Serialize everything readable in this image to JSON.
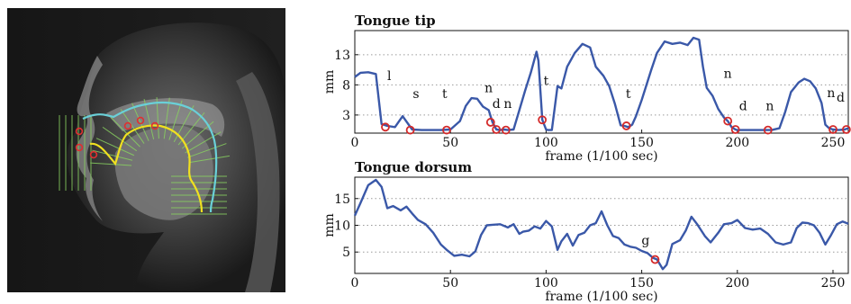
{
  "colors": {
    "line": "#3a58a8",
    "marker": "#d42a2a",
    "grid": "#9a9a9a",
    "mri_trace_outer": "#6ad0d8",
    "mri_trace_inner": "#f0e020",
    "mri_gridlines": "#88d060"
  },
  "image": {
    "kind": "mri-midsagittal-vocal-tract"
  },
  "chart_data": [
    {
      "type": "line",
      "title": "Tongue tip",
      "xlabel": "frame (1/100 sec)",
      "ylabel": "mm",
      "xlim": [
        0,
        258
      ],
      "ylim": [
        0,
        17
      ],
      "xticks": [
        0,
        50,
        100,
        150,
        200,
        250
      ],
      "yticks": [
        3,
        8,
        13
      ],
      "grid": "y-dotted",
      "series": [
        {
          "x": [
            0,
            3,
            7,
            11,
            14,
            17,
            21,
            25,
            30,
            35,
            40,
            45,
            50,
            55,
            58,
            61,
            64,
            67,
            70,
            72,
            74,
            76,
            78,
            80,
            83,
            86,
            89,
            92,
            95,
            96,
            98,
            100,
            101,
            103,
            106,
            108,
            111,
            115,
            119,
            123,
            126,
            130,
            133,
            136,
            139,
            141,
            143,
            145,
            147,
            150,
            155,
            158,
            162,
            166,
            170,
            174,
            177,
            180,
            182,
            184,
            187,
            190,
            193,
            195,
            197,
            199,
            200,
            205,
            210,
            215,
            218,
            222,
            225,
            228,
            232,
            235,
            238,
            241,
            244,
            246,
            248,
            250,
            253,
            256,
            258
          ],
          "y": [
            9.3,
            10,
            10.1,
            9.8,
            1.5,
            1.2,
            1.0,
            2.8,
            0.6,
            0.5,
            0.5,
            0.5,
            0.6,
            2.0,
            4.5,
            5.8,
            5.7,
            4.4,
            3.8,
            1.8,
            0.6,
            0.5,
            0.6,
            0.5,
            0.6,
            3.8,
            7.0,
            10.0,
            13.5,
            12.0,
            2.2,
            0.6,
            0.5,
            0.5,
            7.8,
            7.4,
            11.0,
            13.3,
            14.8,
            14.2,
            11.0,
            9.5,
            7.8,
            4.8,
            1.3,
            1.2,
            1.0,
            1.4,
            2.8,
            5.5,
            10.5,
            13.3,
            15.2,
            14.8,
            15.0,
            14.6,
            15.8,
            15.5,
            11.0,
            7.5,
            6.2,
            4.0,
            2.6,
            2.0,
            1.0,
            0.6,
            0.5,
            0.5,
            0.5,
            0.5,
            0.5,
            0.8,
            3.5,
            6.8,
            8.4,
            9.0,
            8.6,
            7.4,
            5.0,
            1.4,
            0.8,
            0.6,
            0.5,
            0.6,
            0.8
          ]
        }
      ],
      "markers": [
        {
          "x": 16,
          "y": 1.0
        },
        {
          "x": 29,
          "y": 0.5
        },
        {
          "x": 48,
          "y": 0.5
        },
        {
          "x": 71,
          "y": 1.8
        },
        {
          "x": 74,
          "y": 0.6
        },
        {
          "x": 79,
          "y": 0.5
        },
        {
          "x": 98,
          "y": 2.2
        },
        {
          "x": 142,
          "y": 1.2
        },
        {
          "x": 195,
          "y": 2.0
        },
        {
          "x": 199,
          "y": 0.6
        },
        {
          "x": 216,
          "y": 0.5
        },
        {
          "x": 250,
          "y": 0.6
        },
        {
          "x": 257,
          "y": 0.6
        }
      ],
      "annotations": [
        {
          "text": "l",
          "x": 18,
          "y": 8.8
        },
        {
          "text": "s",
          "x": 32,
          "y": 5.8
        },
        {
          "text": "t",
          "x": 47,
          "y": 5.8
        },
        {
          "text": "n",
          "x": 70,
          "y": 6.8
        },
        {
          "text": "d",
          "x": 74,
          "y": 4.2
        },
        {
          "text": "n",
          "x": 80,
          "y": 4.2
        },
        {
          "text": "t",
          "x": 100,
          "y": 8.0
        },
        {
          "text": "t",
          "x": 143,
          "y": 5.8
        },
        {
          "text": "n",
          "x": 195,
          "y": 9.2
        },
        {
          "text": "d",
          "x": 203,
          "y": 3.8
        },
        {
          "text": "n",
          "x": 217,
          "y": 3.8
        },
        {
          "text": "n",
          "x": 249,
          "y": 6.0
        },
        {
          "text": "d",
          "x": 254,
          "y": 5.2
        }
      ]
    },
    {
      "type": "line",
      "title": "Tongue dorsum",
      "xlabel": "frame (1/100 sec)",
      "ylabel": "mm",
      "xlim": [
        0,
        258
      ],
      "ylim": [
        1,
        19
      ],
      "xticks": [
        0,
        50,
        100,
        150,
        200,
        250
      ],
      "yticks": [
        5,
        10,
        15
      ],
      "grid": "y-dotted",
      "series": [
        {
          "x": [
            0,
            3,
            7,
            11,
            14,
            17,
            20,
            24,
            27,
            30,
            33,
            37,
            41,
            45,
            48,
            52,
            56,
            60,
            63,
            66,
            69,
            72,
            76,
            80,
            83,
            86,
            88,
            91,
            94,
            97,
            100,
            103,
            106,
            108,
            111,
            114,
            117,
            120,
            123,
            126,
            129,
            132,
            135,
            138,
            141,
            144,
            147,
            150,
            153,
            156,
            158,
            161,
            163,
            166,
            170,
            173,
            176,
            179,
            183,
            186,
            190,
            193,
            197,
            200,
            204,
            208,
            212,
            216,
            220,
            224,
            228,
            231,
            234,
            237,
            240,
            243,
            246,
            249,
            252,
            255,
            258
          ],
          "y": [
            11.8,
            14.2,
            17.5,
            18.5,
            17.2,
            13.2,
            13.6,
            12.8,
            13.5,
            12.2,
            11.0,
            10.2,
            8.6,
            6.4,
            5.4,
            4.3,
            4.5,
            4.2,
            5.1,
            8.2,
            10.0,
            10.1,
            10.2,
            9.6,
            10.2,
            8.4,
            8.8,
            9.0,
            9.8,
            9.4,
            10.8,
            9.8,
            5.4,
            7.0,
            8.4,
            6.2,
            8.2,
            8.6,
            10.0,
            10.4,
            12.6,
            10.0,
            8.0,
            7.6,
            6.4,
            6.0,
            5.8,
            5.2,
            4.8,
            3.9,
            3.6,
            1.8,
            2.6,
            6.5,
            7.2,
            9.0,
            11.6,
            10.2,
            8.0,
            6.8,
            8.6,
            10.2,
            10.4,
            11.0,
            9.5,
            9.2,
            9.4,
            8.4,
            6.8,
            6.4,
            6.8,
            9.5,
            10.5,
            10.4,
            10.0,
            8.6,
            6.4,
            8.2,
            10.2,
            10.7,
            10.3
          ]
        }
      ],
      "markers": [
        {
          "x": 157,
          "y": 3.6
        }
      ],
      "annotations": [
        {
          "text": "g",
          "x": 152,
          "y": 6.4
        }
      ]
    }
  ]
}
